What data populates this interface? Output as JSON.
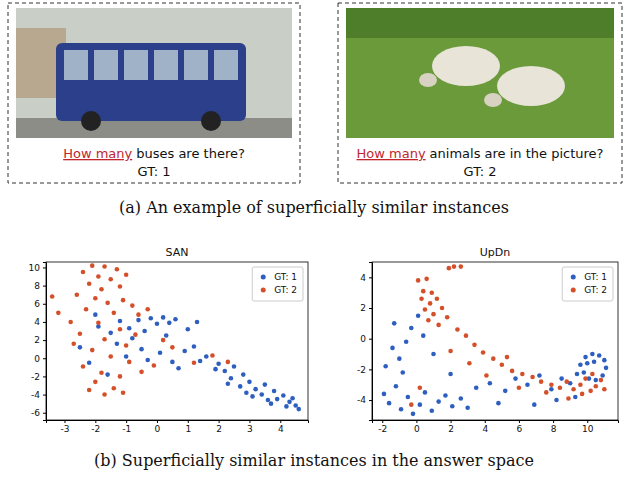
{
  "panels_a": [
    {
      "question_highlight": "How many",
      "question_rest": "buses are there?",
      "gt": "GT: 1"
    },
    {
      "question_highlight": "How many",
      "question_rest": "animals are in the picture?",
      "gt": "GT: 2"
    }
  ],
  "caption_a": "(a) An example of superficially similar instances",
  "caption_b": "(b) Superficially similar instances in the answer space",
  "chart_data": [
    {
      "type": "scatter",
      "title": "SAN",
      "legend": "upper right",
      "marker": "circle",
      "xlim": [
        -3.6,
        4.9
      ],
      "ylim": [
        -6.8,
        10.6
      ],
      "xticks": [
        -3,
        -2,
        -1,
        0,
        1,
        2,
        3,
        4
      ],
      "yticks": [
        -6,
        -4,
        -2,
        0,
        2,
        4,
        6,
        8,
        10
      ],
      "series": [
        {
          "name": "GT: 1",
          "color": "#2e5fc0",
          "x": [
            -1.9,
            -1.5,
            -1.2,
            -0.9,
            -0.6,
            -0.4,
            -0.2,
            0.0,
            0.2,
            0.4,
            0.6,
            0.3,
            -0.8,
            -1.3,
            -0.5,
            0.1,
            -1.0,
            -2.2,
            -1.6,
            -0.3,
            0.5,
            0.9,
            1.2,
            1.6,
            2.0,
            2.2,
            2.5,
            2.4,
            2.8,
            3.0,
            2.7,
            3.2,
            3.5,
            3.4,
            3.8,
            3.9,
            4.1,
            4.3,
            4.5,
            4.6,
            4.2,
            3.6,
            3.1,
            2.9,
            1.9,
            1.4,
            1.0,
            1.3,
            -2.5,
            -2.0,
            0.7,
            2.3,
            4.4,
            3.7
          ],
          "values": [
            3.5,
            2.8,
            4.1,
            3.3,
            4.2,
            3.0,
            4.4,
            3.8,
            4.5,
            3.9,
            4.3,
            2.5,
            2.2,
            1.6,
            1.0,
            0.6,
            0.2,
            -0.5,
            -1.8,
            -0.2,
            -0.4,
            0.8,
            1.3,
            0.2,
            -0.6,
            -1.4,
            -0.9,
            -2.2,
            -1.8,
            -2.6,
            -3.1,
            -3.4,
            -2.9,
            -4.0,
            -3.6,
            -4.5,
            -4.1,
            -4.8,
            -5.2,
            -5.6,
            -5.3,
            -4.6,
            -4.2,
            -3.8,
            -1.2,
            -0.3,
            3.2,
            4.0,
            1.2,
            4.8,
            -1.1,
            -2.8,
            -4.4,
            -5.0
          ]
        },
        {
          "name": "GT: 2",
          "color": "#d4502a",
          "x": [
            -2.1,
            -1.7,
            -1.3,
            -2.4,
            -1.9,
            -1.5,
            -1.0,
            -2.2,
            -1.8,
            -1.2,
            -2.6,
            -2.0,
            -1.6,
            -1.1,
            -0.8,
            -2.3,
            -1.4,
            -0.6,
            -2.8,
            -1.9,
            -1.2,
            -0.7,
            -2.5,
            -1.7,
            -1.0,
            -2.1,
            -1.5,
            -0.9,
            -2.4,
            -1.8,
            -1.2,
            -0.5,
            -2.0,
            -1.4,
            -1.7,
            -2.2,
            -3.4,
            -3.2,
            0.2,
            -0.3,
            0.5,
            1.8,
            2.3,
            -0.1,
            -1.1,
            1.2,
            -2.7
          ],
          "values": [
            10.2,
            10.1,
            9.8,
            9.5,
            9.0,
            8.7,
            9.2,
            8.2,
            7.6,
            7.9,
            7.0,
            6.6,
            6.1,
            6.4,
            5.8,
            5.4,
            5.0,
            4.8,
            4.0,
            3.9,
            3.2,
            2.6,
            2.7,
            2.1,
            1.4,
            0.9,
            0.2,
            -0.4,
            -0.9,
            -1.6,
            -2.0,
            -1.5,
            -2.6,
            -3.3,
            -4.0,
            -3.5,
            6.8,
            5.0,
            2.0,
            5.4,
            1.2,
            0.3,
            -0.4,
            -0.8,
            -3.8,
            -0.5,
            1.6
          ]
        }
      ]
    },
    {
      "type": "scatter",
      "title": "UpDn",
      "legend": "upper right",
      "marker": "circle",
      "xlim": [
        -2.6,
        11.8
      ],
      "ylim": [
        -5.3,
        5.0
      ],
      "xticks": [
        -2,
        0,
        2,
        4,
        6,
        8,
        10
      ],
      "yticks": [
        -4,
        -2,
        0,
        2,
        4
      ],
      "series": [
        {
          "name": "GT: 1",
          "color": "#2e5fc0",
          "x": [
            -1.9,
            -1.6,
            -1.2,
            -0.9,
            -0.5,
            -0.2,
            0.2,
            0.5,
            0.9,
            1.3,
            1.7,
            2.1,
            2.6,
            3.0,
            -1.4,
            -1.0,
            -0.6,
            -0.3,
            0.1,
            0.4,
            -0.8,
            1.0,
            2.0,
            3.5,
            4.3,
            5.2,
            5.8,
            6.5,
            7.2,
            7.9,
            8.5,
            9.0,
            9.4,
            9.6,
            9.9,
            10.3,
            10.7,
            11.0,
            11.1,
            10.9,
            10.5,
            10.1,
            9.8,
            10.0,
            10.4,
            9.3,
            8.2,
            6.9,
            4.8,
            -1.8,
            -1.3
          ],
          "values": [
            -3.6,
            -4.2,
            -3.1,
            -4.6,
            -3.8,
            -4.9,
            -4.3,
            -3.5,
            -4.7,
            -4.1,
            -3.7,
            -4.4,
            -3.9,
            -4.5,
            -0.6,
            -1.3,
            -0.2,
            0.7,
            1.5,
            0.2,
            -2.2,
            -1.0,
            -2.3,
            -3.2,
            -2.9,
            -3.4,
            -2.6,
            -3.0,
            -2.4,
            -3.3,
            -2.6,
            -2.9,
            -2.3,
            -1.7,
            -1.2,
            -1.0,
            -1.1,
            -1.4,
            -1.9,
            -2.4,
            -2.7,
            -2.6,
            -2.2,
            -1.6,
            -1.5,
            -3.8,
            -4.0,
            -4.3,
            -4.2,
            -1.8,
            1.0
          ]
        },
        {
          "name": "GT: 2",
          "color": "#d4502a",
          "x": [
            2.2,
            2.6,
            1.9,
            0.1,
            0.4,
            0.6,
            0.9,
            0.3,
            0.8,
            1.2,
            0.5,
            1.0,
            1.5,
            0.7,
            1.8,
            1.3,
            2.4,
            2.9,
            3.4,
            3.9,
            4.5,
            5.0,
            5.6,
            6.2,
            6.8,
            7.3,
            7.9,
            8.4,
            8.8,
            9.2,
            9.6,
            9.9,
            10.2,
            10.5,
            10.8,
            10.3,
            9.7,
            11.0,
            5.3,
            6.0,
            7.6,
            4.1,
            2.0,
            -0.3,
            0.2,
            8.9,
            3.1
          ],
          "values": [
            4.7,
            4.7,
            4.6,
            3.8,
            3.1,
            3.9,
            3.0,
            2.6,
            2.3,
            2.6,
            1.9,
            1.6,
            2.0,
            1.2,
            1.4,
            0.9,
            0.6,
            0.2,
            -0.4,
            -0.9,
            -1.3,
            -1.7,
            -2.1,
            -2.3,
            -2.5,
            -2.8,
            -3.0,
            -3.2,
            -2.8,
            -3.3,
            -3.0,
            -2.6,
            -3.4,
            -3.1,
            -2.7,
            -2.3,
            -3.6,
            -3.3,
            -1.2,
            -3.2,
            -3.5,
            -2.4,
            -0.8,
            -4.3,
            -3.2,
            -3.9,
            -1.6
          ]
        }
      ]
    }
  ]
}
